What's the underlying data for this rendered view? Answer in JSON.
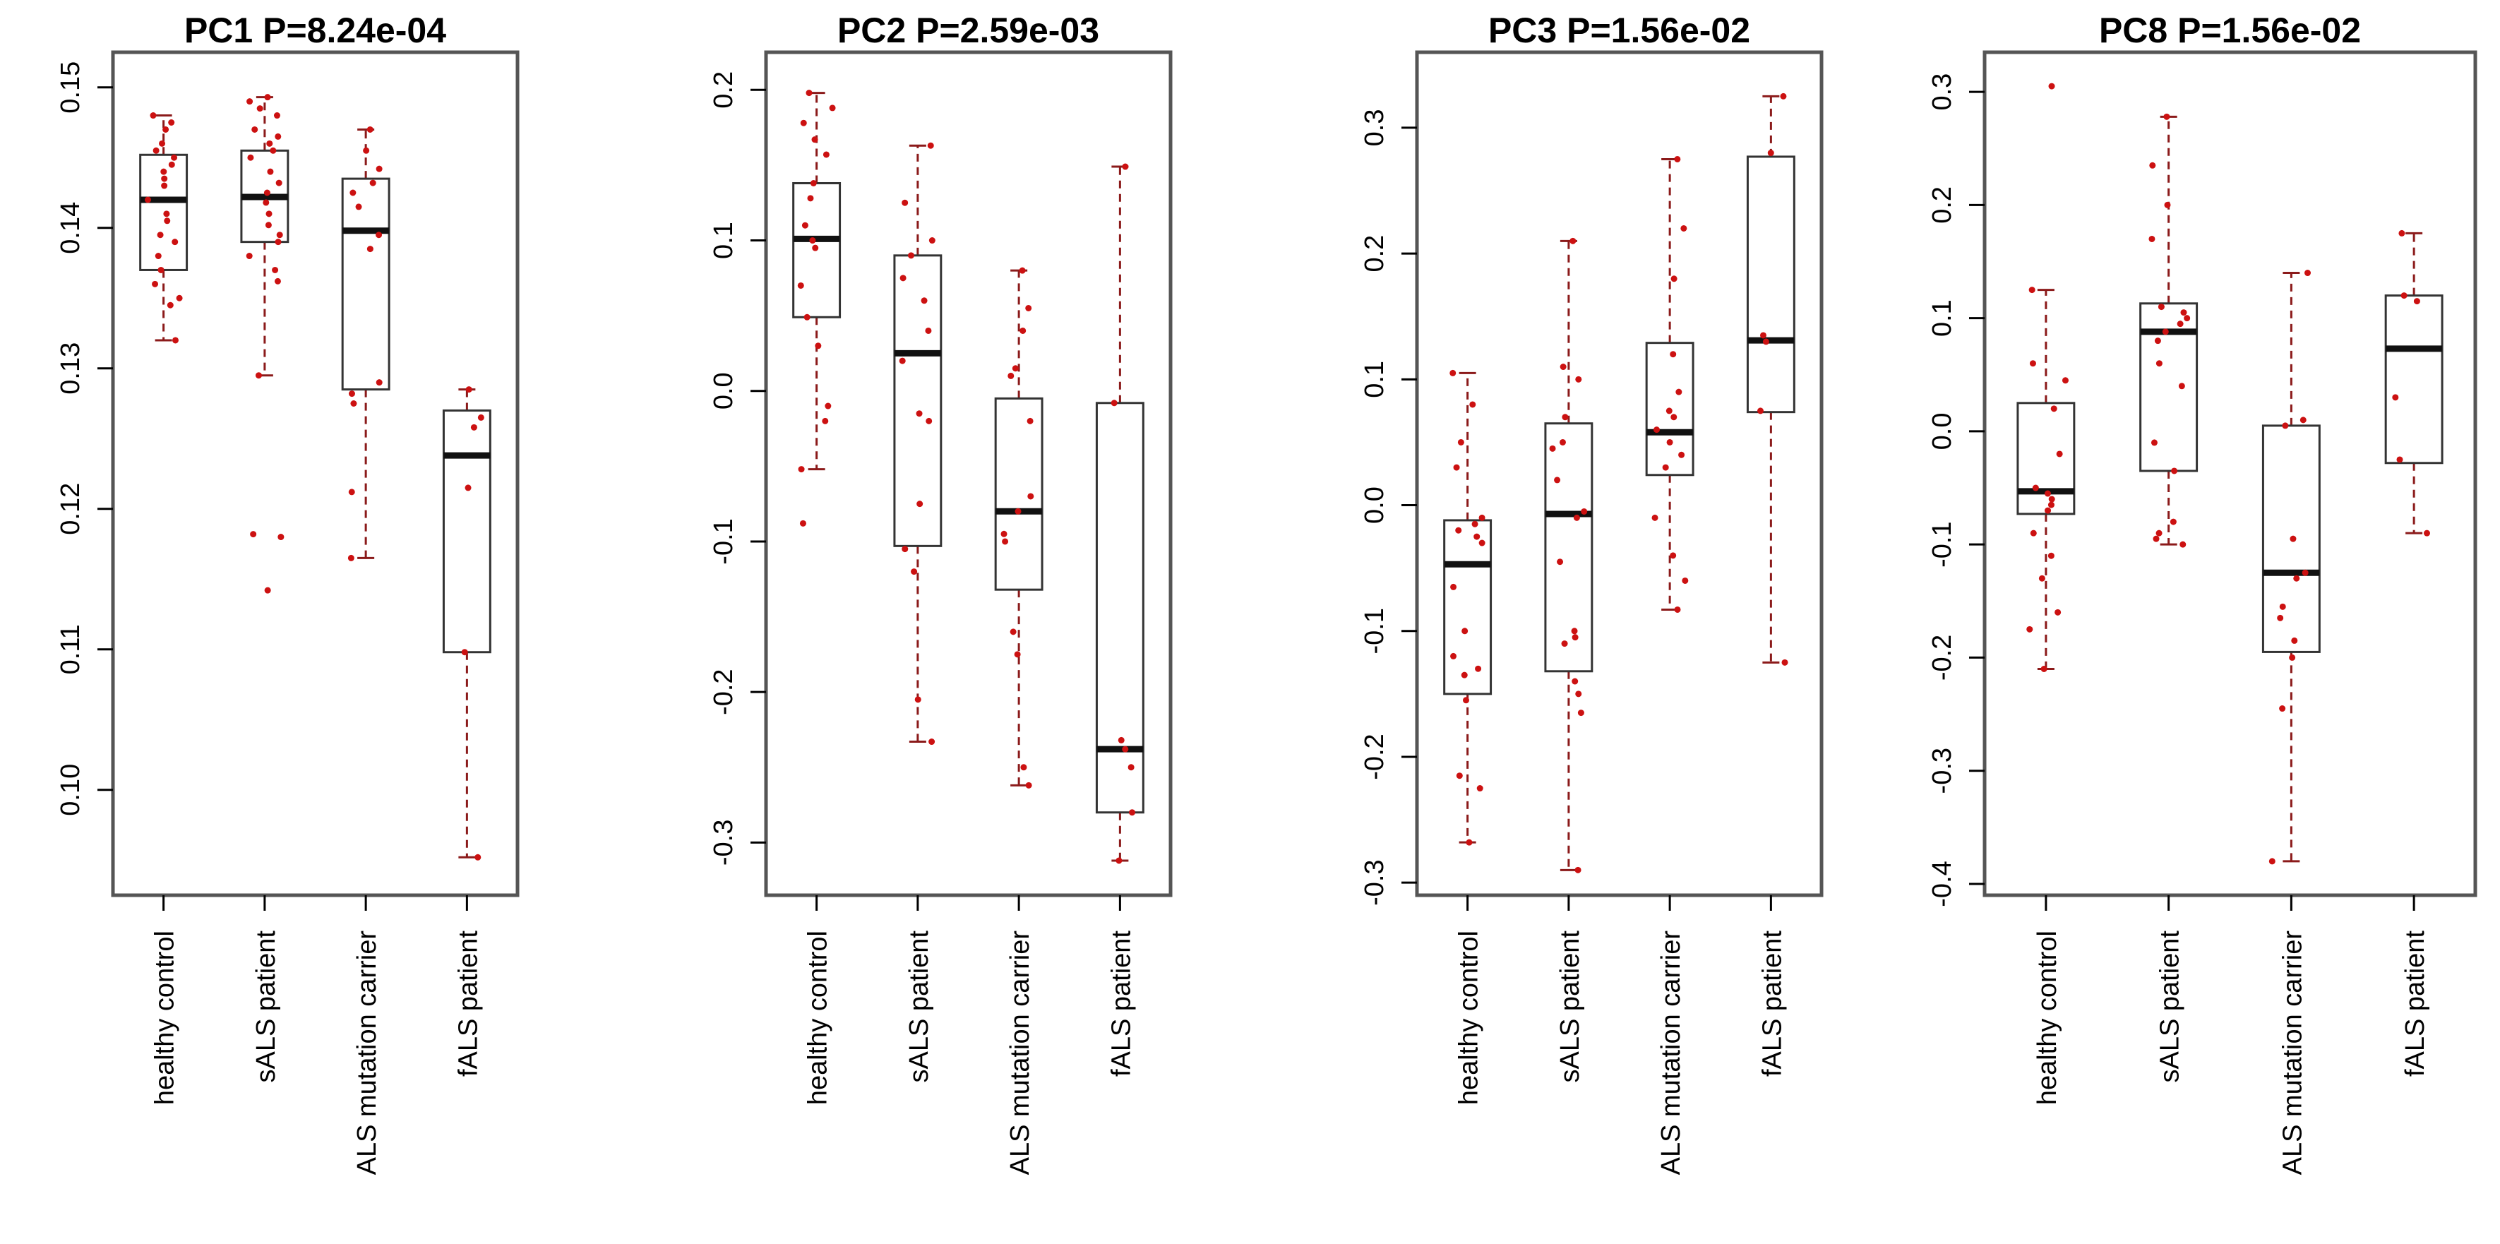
{
  "colors": {
    "box": "#333333",
    "median": "#111111",
    "whisker": "#8b1a1a",
    "point": "#cc1111",
    "frame": "#555555"
  },
  "chart_data": [
    {
      "type": "boxplot",
      "title": "PC1 P=8.24e-04",
      "categories": [
        "healthy control",
        "sALS patient",
        "ALS mutation carrier",
        "fALS patient"
      ],
      "ylim": [
        0.0925,
        0.1525
      ],
      "yticks": [
        0.1,
        0.11,
        0.12,
        0.13,
        0.14,
        0.15
      ],
      "yticklabels": [
        "0.10",
        "0.11",
        "0.12",
        "0.13",
        "0.14",
        "0.15"
      ],
      "boxes": [
        {
          "min": 0.132,
          "q1": 0.137,
          "median": 0.142,
          "q3": 0.1452,
          "max": 0.148
        },
        {
          "min": 0.1295,
          "q1": 0.139,
          "median": 0.1422,
          "q3": 0.1455,
          "max": 0.1493
        },
        {
          "min": 0.1165,
          "q1": 0.1285,
          "median": 0.1398,
          "q3": 0.1435,
          "max": 0.147
        },
        {
          "min": 0.0952,
          "q1": 0.1098,
          "median": 0.1238,
          "q3": 0.127,
          "max": 0.1285
        }
      ],
      "points": [
        [
          0.148,
          0.1475,
          0.147,
          0.146,
          0.1455,
          0.145,
          0.1445,
          0.144,
          0.1435,
          0.143,
          0.142,
          0.141,
          0.1405,
          0.1395,
          0.139,
          0.138,
          0.137,
          0.136,
          0.135,
          0.1345,
          0.132
        ],
        [
          0.1493,
          0.149,
          0.1485,
          0.148,
          0.147,
          0.1465,
          0.146,
          0.1455,
          0.145,
          0.144,
          0.1432,
          0.1425,
          0.1418,
          0.141,
          0.1402,
          0.1395,
          0.139,
          0.138,
          0.137,
          0.1362,
          0.1295,
          0.1182,
          0.118,
          0.1142
        ],
        [
          0.147,
          0.1455,
          0.1442,
          0.1432,
          0.1425,
          0.1415,
          0.1395,
          0.1385,
          0.129,
          0.1282,
          0.1275,
          0.1212,
          0.1165
        ],
        [
          0.1285,
          0.1265,
          0.1258,
          0.1215,
          0.1098,
          0.0952
        ]
      ]
    },
    {
      "type": "boxplot",
      "title": "PC2 P=2.59e-03",
      "categories": [
        "healthy control",
        "sALS patient",
        "ALS mutation carrier",
        "fALS patient"
      ],
      "ylim": [
        -0.335,
        0.225
      ],
      "yticks": [
        -0.3,
        -0.2,
        -0.1,
        0.0,
        0.1,
        0.2
      ],
      "yticklabels": [
        "-0.3",
        "-0.2",
        "-0.1",
        "0.0",
        "0.1",
        "0.2"
      ],
      "boxes": [
        {
          "min": -0.052,
          "q1": 0.049,
          "median": 0.101,
          "q3": 0.138,
          "max": 0.198
        },
        {
          "min": -0.233,
          "q1": -0.103,
          "median": 0.025,
          "q3": 0.09,
          "max": 0.163
        },
        {
          "min": -0.262,
          "q1": -0.132,
          "median": -0.08,
          "q3": -0.005,
          "max": 0.08
        },
        {
          "min": -0.312,
          "q1": -0.28,
          "median": -0.238,
          "q3": -0.008,
          "max": 0.149
        }
      ],
      "points": [
        [
          0.198,
          0.188,
          0.178,
          0.167,
          0.157,
          0.138,
          0.128,
          0.11,
          0.1,
          0.095,
          0.07,
          0.049,
          0.03,
          -0.01,
          -0.02,
          -0.052,
          -0.088
        ],
        [
          0.163,
          0.125,
          0.1,
          0.09,
          0.075,
          0.06,
          0.04,
          0.02,
          -0.015,
          -0.02,
          -0.075,
          -0.105,
          -0.12,
          -0.205,
          -0.233
        ],
        [
          0.08,
          0.055,
          0.04,
          0.015,
          0.01,
          -0.02,
          -0.07,
          -0.08,
          -0.1,
          -0.095,
          -0.16,
          -0.175,
          -0.25,
          -0.262
        ],
        [
          0.149,
          -0.008,
          -0.232,
          -0.238,
          -0.25,
          -0.28,
          -0.312
        ]
      ]
    },
    {
      "type": "boxplot",
      "title": "PC3 P=1.56e-02",
      "categories": [
        "healthy control",
        "sALS patient",
        "ALS mutation carrier",
        "fALS patient"
      ],
      "ylim": [
        -0.31,
        0.36
      ],
      "yticks": [
        -0.3,
        -0.2,
        -0.1,
        0.0,
        0.1,
        0.2,
        0.3
      ],
      "yticklabels": [
        "-0.3",
        "-0.2",
        "-0.1",
        "0.0",
        "0.1",
        "0.2",
        "0.3"
      ],
      "boxes": [
        {
          "min": -0.268,
          "q1": -0.15,
          "median": -0.047,
          "q3": -0.012,
          "max": 0.105
        },
        {
          "min": -0.29,
          "q1": -0.132,
          "median": -0.007,
          "q3": 0.065,
          "max": 0.21
        },
        {
          "min": -0.083,
          "q1": 0.024,
          "median": 0.058,
          "q3": 0.129,
          "max": 0.275
        },
        {
          "min": -0.125,
          "q1": 0.074,
          "median": 0.131,
          "q3": 0.277,
          "max": 0.325
        }
      ],
      "points": [
        [
          0.105,
          0.08,
          0.05,
          0.03,
          -0.01,
          -0.015,
          -0.02,
          -0.025,
          -0.03,
          -0.065,
          -0.1,
          -0.12,
          -0.13,
          -0.135,
          -0.155,
          -0.215,
          -0.225,
          -0.268
        ],
        [
          0.21,
          0.11,
          0.1,
          0.07,
          0.05,
          0.045,
          0.02,
          -0.005,
          -0.01,
          -0.045,
          -0.1,
          -0.105,
          -0.11,
          -0.14,
          -0.15,
          -0.165,
          -0.29
        ],
        [
          0.275,
          0.22,
          0.18,
          0.12,
          0.09,
          0.075,
          0.07,
          0.06,
          0.05,
          0.04,
          0.03,
          -0.01,
          -0.04,
          -0.06,
          -0.083
        ],
        [
          0.325,
          0.28,
          0.135,
          0.13,
          0.075,
          -0.125
        ]
      ]
    },
    {
      "type": "boxplot",
      "title": "PC8 P=1.56e-02",
      "categories": [
        "healthy control",
        "sALS patient",
        "ALS mutation carrier",
        "fALS patient"
      ],
      "ylim": [
        -0.41,
        0.335
      ],
      "yticks": [
        -0.4,
        -0.3,
        -0.2,
        -0.1,
        0.0,
        0.1,
        0.2,
        0.3
      ],
      "yticklabels": [
        "-0.4",
        "-0.3",
        "-0.2",
        "-0.1",
        "0.0",
        "0.1",
        "0.2",
        "0.3"
      ],
      "boxes": [
        {
          "min": -0.21,
          "q1": -0.073,
          "median": -0.053,
          "q3": 0.025,
          "max": 0.125
        },
        {
          "min": -0.1,
          "q1": -0.035,
          "median": 0.088,
          "q3": 0.113,
          "max": 0.278
        },
        {
          "min": -0.38,
          "q1": -0.195,
          "median": -0.125,
          "q3": 0.005,
          "max": 0.14
        },
        {
          "min": -0.09,
          "q1": -0.028,
          "median": 0.073,
          "q3": 0.12,
          "max": 0.175
        }
      ],
      "points": [
        [
          0.305,
          0.125,
          0.06,
          0.045,
          0.02,
          -0.02,
          -0.05,
          -0.055,
          -0.06,
          -0.065,
          -0.07,
          -0.09,
          -0.11,
          -0.13,
          -0.16,
          -0.175,
          -0.21
        ],
        [
          0.278,
          0.235,
          0.2,
          0.17,
          0.11,
          0.105,
          0.1,
          0.095,
          0.088,
          0.08,
          0.06,
          0.04,
          -0.01,
          -0.035,
          -0.08,
          -0.09,
          -0.095,
          -0.1
        ],
        [
          0.14,
          0.01,
          0.005,
          -0.095,
          -0.125,
          -0.13,
          -0.155,
          -0.165,
          -0.185,
          -0.2,
          -0.245,
          -0.38
        ],
        [
          0.175,
          0.12,
          0.115,
          0.03,
          -0.025,
          -0.09
        ]
      ]
    }
  ]
}
